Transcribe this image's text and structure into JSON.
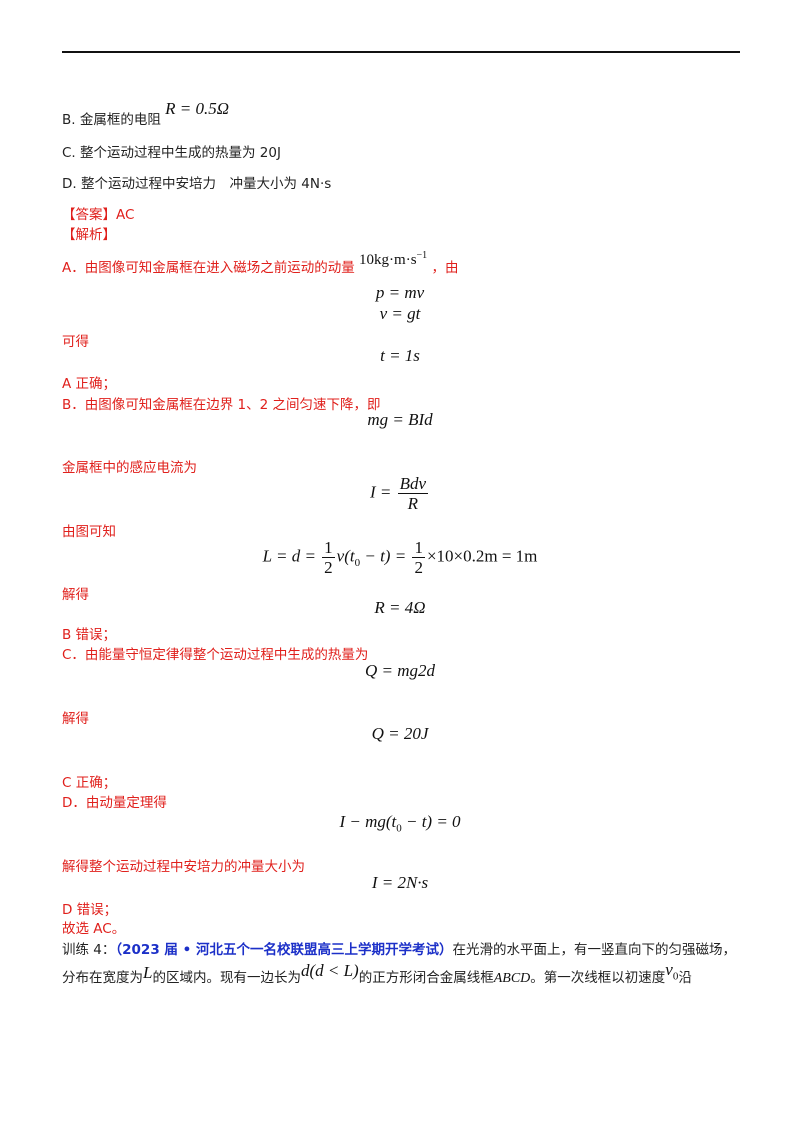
{
  "options": {
    "b_prefix": "B.  金属框的电阻",
    "b_formula": "R = 0.5Ω",
    "c": "C.  整个运动过程中生成的热量为 20J",
    "d_prefix": "D.  整个运动过程中安培力　冲量大小为",
    "d_value": "4N·s"
  },
  "answer": "【答案】AC",
  "analysis_header": "【解析】",
  "a_line_prefix": "A．由图像可知金属框在进入磁场之前运动的动量",
  "a_line_momentum": "10kg·m·s",
  "a_line_exp": "−1",
  "a_line_suffix": "，由",
  "eq_p": "p = mv",
  "eq_v": "v = gt",
  "kede": "可得",
  "eq_t": "t = 1s",
  "a_correct": "A 正确；",
  "b_line": "B．由图像可知金属框在边界 1、2 之间匀速下降，即",
  "eq_mg": "mg = BId",
  "current_label": "金属框中的感应电流为",
  "eq_I_lhs": "I =",
  "eq_I_num": "Bdv",
  "eq_I_den": "R",
  "youtu": "由图可知",
  "eq_L_lhs": "L = d =",
  "eq_L_mid": "v(t",
  "eq_L_mid2": " − t) =",
  "eq_L_rhs": "×10×0.2m = 1m",
  "frac_one": "1",
  "frac_two": "2",
  "sub_zero": "0",
  "jiede1": "解得",
  "eq_R": "R = 4Ω",
  "b_wrong": "B 错误；",
  "c_line": "C．由能量守恒定律得整个运动过程中生成的热量为",
  "eq_Q1": "Q = mg2d",
  "jiede2": "解得",
  "eq_Q2": "Q = 20J",
  "c_correct": "C 正确；",
  "d_line": "D．由动量定理得",
  "eq_imp_a": "I − mg(t",
  "eq_imp_b": " − t) = 0",
  "d_result_label": "解得整个运动过程中安培力的冲量大小为",
  "eq_imp_result": "I = 2N·s",
  "d_wrong": "D 错误；",
  "final": "故选 AC。",
  "training_label": "训练 4：",
  "training_source": "（2023 届 • 河北五个一名校联盟高三上学期开学考试）",
  "training_text1": "在光滑的水平面上，有一竖直向下的匀强磁场，",
  "training_text2_a": "分布在宽度为",
  "training_L": "L",
  "training_text2_b": "的区域内。现有一边长为",
  "training_d": "d",
  "training_cond": "(d < L)",
  "training_text2_c": "的正方形闭合金属线框",
  "training_abcd": "ABCD",
  "training_text2_d": "。第一次线框以初速度",
  "training_v0": "v",
  "training_text2_e": "沿"
}
